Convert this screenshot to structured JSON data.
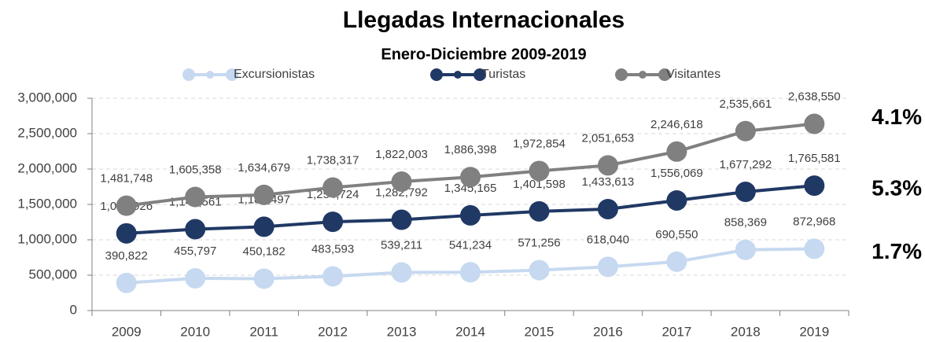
{
  "chart_data": {
    "type": "line",
    "title": "Llegadas Internacionales",
    "subtitle": "Enero-Diciembre 2009-2019",
    "categories": [
      "2009",
      "2010",
      "2011",
      "2012",
      "2013",
      "2014",
      "2015",
      "2016",
      "2017",
      "2018",
      "2019"
    ],
    "series": [
      {
        "name": "Excursionistas",
        "color": "#c6d9f0",
        "values": [
          390822,
          455797,
          450182,
          483593,
          539211,
          541234,
          571256,
          618040,
          690550,
          858369,
          872968
        ],
        "value_labels": [
          "390,822",
          "455,797",
          "450,182",
          "483,593",
          "539,211",
          "541,234",
          "571,256",
          "618,040",
          "690,550",
          "858,369",
          "872,968"
        ]
      },
      {
        "name": "Turistas",
        "color": "#203864",
        "values": [
          1090926,
          1149561,
          1184497,
          1254724,
          1282792,
          1345165,
          1401598,
          1433613,
          1556069,
          1677292,
          1765581
        ],
        "value_labels": [
          "1,090,926",
          "1,149,561",
          "1,184,497",
          "1,254,724",
          "1,282,792",
          "1,345,165",
          "1,401,598",
          "1,433,613",
          "1,556,069",
          "1,677,292",
          "1,765,581"
        ]
      },
      {
        "name": "Visitantes",
        "color": "#808080",
        "values": [
          1481748,
          1605358,
          1634679,
          1738317,
          1822003,
          1886398,
          1972854,
          2051653,
          2246618,
          2535661,
          2638550
        ],
        "value_labels": [
          "1,481,748",
          "1,605,358",
          "1,634,679",
          "1,738,317",
          "1,822,003",
          "1,886,398",
          "1,972,854",
          "2,051,653",
          "2,246,618",
          "2,535,661",
          "2,638,550"
        ]
      }
    ],
    "annotations": [
      "1.7%",
      "5.3%",
      "4.1%"
    ],
    "ylim": [
      0,
      3000000
    ],
    "yticks": [
      0,
      {
        "value": 500000,
        "label": "500,000"
      },
      {
        "value": 1000000,
        "label": "1,000,000"
      },
      {
        "value": 1500000,
        "label": "1,500,000"
      },
      {
        "value": 2000000,
        "label": "2,000,000"
      },
      {
        "value": 2500000,
        "label": "2,500,000"
      },
      {
        "value": 3000000,
        "label": "3,000,000"
      }
    ],
    "grid": true
  }
}
